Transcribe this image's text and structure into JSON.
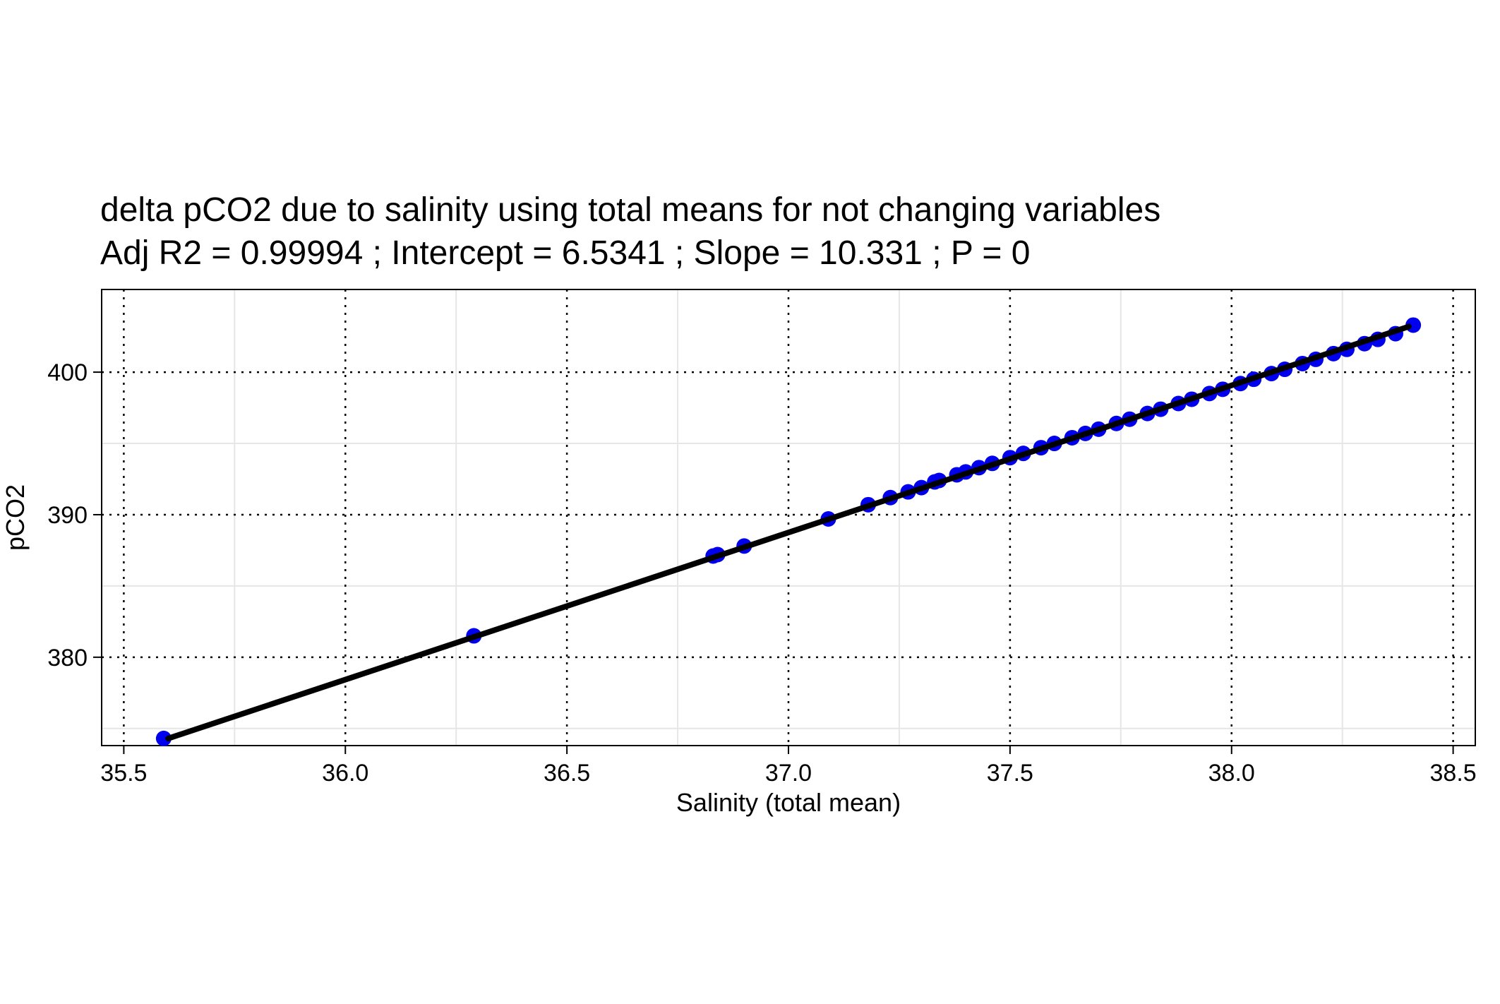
{
  "chart_data": {
    "type": "scatter",
    "title_lines": [
      "delta pCO2 due to salinity using total means for not changing variables",
      "Adj R2 =  0.99994 ; Intercept = 6.5341 ; Slope = 10.331 ; P = 0"
    ],
    "xlabel": "Salinity (total mean)",
    "ylabel": "pCO2",
    "xlim": [
      35.45,
      38.55
    ],
    "ylim": [
      373.8,
      405.8
    ],
    "x_ticks": [
      35.5,
      36.0,
      36.5,
      37.0,
      37.5,
      38.0,
      38.5
    ],
    "x_tick_labels": [
      "35.5",
      "36.0",
      "36.5",
      "37.0",
      "37.5",
      "38.0",
      "38.5"
    ],
    "y_ticks": [
      380,
      390,
      400
    ],
    "y_tick_labels": [
      "380",
      "390",
      "400"
    ],
    "x_minor_ticks": [
      35.75,
      36.25,
      36.75,
      37.25,
      37.75,
      38.25
    ],
    "y_minor_ticks": [
      375,
      385,
      395
    ],
    "grid": true,
    "series": [
      {
        "kind": "points",
        "color": "#0000ee",
        "x": [
          35.59,
          36.29,
          36.83,
          36.84,
          36.9,
          37.09,
          37.18,
          37.23,
          37.27,
          37.3,
          37.33,
          37.34,
          37.38,
          37.4,
          37.43,
          37.46,
          37.5,
          37.53,
          37.57,
          37.6,
          37.64,
          37.67,
          37.7,
          37.74,
          37.77,
          37.81,
          37.84,
          37.88,
          37.91,
          37.95,
          37.98,
          38.02,
          38.05,
          38.09,
          38.12,
          38.16,
          38.19,
          38.23,
          38.26,
          38.3,
          38.33,
          38.37,
          38.41
        ],
        "y": [
          374.3,
          381.5,
          387.1,
          387.2,
          387.8,
          389.7,
          390.7,
          391.2,
          391.6,
          391.9,
          392.3,
          392.4,
          392.8,
          393.0,
          393.3,
          393.6,
          394.0,
          394.3,
          394.7,
          395.0,
          395.4,
          395.7,
          396.0,
          396.4,
          396.7,
          397.1,
          397.4,
          397.8,
          398.1,
          398.5,
          398.8,
          399.2,
          399.5,
          399.9,
          400.2,
          400.6,
          400.9,
          401.3,
          401.6,
          402.0,
          402.3,
          402.7,
          403.3
        ]
      },
      {
        "kind": "line",
        "color": "#000000",
        "x": [
          35.6,
          38.4
        ],
        "y": [
          374.3,
          403.2
        ]
      }
    ]
  }
}
